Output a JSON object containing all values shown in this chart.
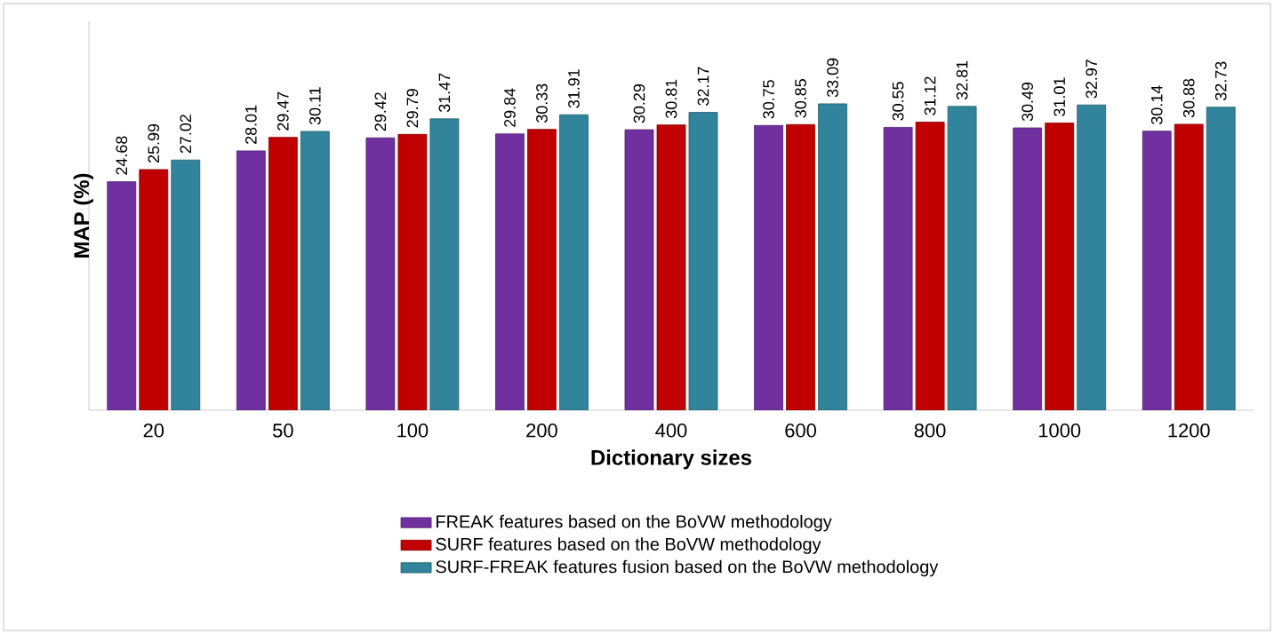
{
  "chart_data": {
    "type": "bar",
    "xlabel": "Dictionary sizes",
    "ylabel": "MAP (%)",
    "categories": [
      "20",
      "50",
      "100",
      "200",
      "400",
      "600",
      "800",
      "1000",
      "1200"
    ],
    "series": [
      {
        "name": "FREAK features based on the BoVW methodology",
        "color": "#7030a0",
        "values": [
          24.68,
          28.01,
          29.42,
          29.84,
          30.29,
          30.75,
          30.55,
          30.49,
          30.14
        ]
      },
      {
        "name": "SURF features based on the BoVW methodology",
        "color": "#c00000",
        "values": [
          25.99,
          29.47,
          29.79,
          30.33,
          30.81,
          30.85,
          31.12,
          31.01,
          30.88
        ]
      },
      {
        "name": "SURF-FREAK features fusion based on the BoVW methodology",
        "color": "#31849b",
        "values": [
          27.02,
          30.11,
          31.47,
          31.91,
          32.17,
          33.09,
          32.81,
          32.97,
          32.73
        ]
      }
    ],
    "ylim": [
      0,
      42
    ],
    "tick_labels": "x",
    "data_labels": true,
    "legend": "bottom",
    "grid": false
  }
}
